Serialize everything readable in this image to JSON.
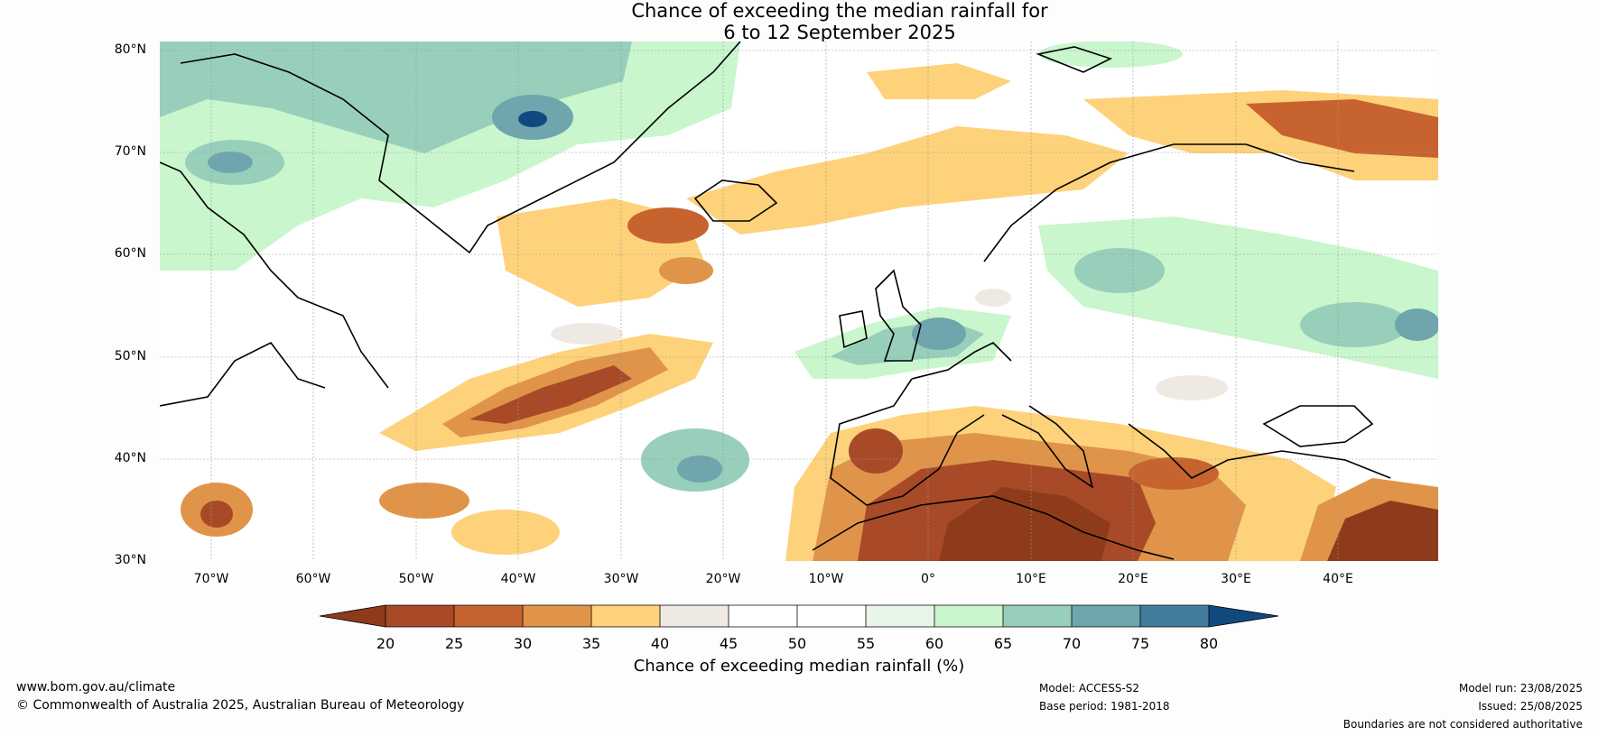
{
  "title_line1": "Chance of exceeding the median rainfall for",
  "title_line2": "6 to 12 September 2025",
  "lat_labels": [
    "80°N",
    "70°N",
    "60°N",
    "50°N",
    "40°N",
    "30°N"
  ],
  "lon_labels": [
    "70°W",
    "60°W",
    "50°W",
    "40°W",
    "30°W",
    "20°W",
    "10°W",
    "0°",
    "10°E",
    "20°E",
    "30°E",
    "40°E"
  ],
  "colorbar": {
    "ticks": [
      "20",
      "25",
      "30",
      "35",
      "40",
      "45",
      "50",
      "55",
      "60",
      "65",
      "70",
      "75",
      "80"
    ],
    "colors": [
      "#8e3b1b",
      "#a84a27",
      "#c7632f",
      "#e0944a",
      "#fdd27a",
      "#efe9e4",
      "#ffffff",
      "#ffffff",
      "#e8f6e8",
      "#c9f6cd",
      "#98cfbb",
      "#6fa5ac",
      "#437c9d",
      "#11497f"
    ],
    "label": "Chance of exceeding median rainfall (%)"
  },
  "footer": {
    "website": "www.bom.gov.au/climate",
    "copyright": "© Commonwealth of Australia 2025, Australian Bureau of Meteorology",
    "model": "Model: ACCESS-S2",
    "base_period": "Base period: 1981-2018",
    "model_run": "Model run: 23/08/2025",
    "issued": "Issued: 25/08/2025",
    "disclaimer": "Boundaries are not considered authoritative"
  }
}
